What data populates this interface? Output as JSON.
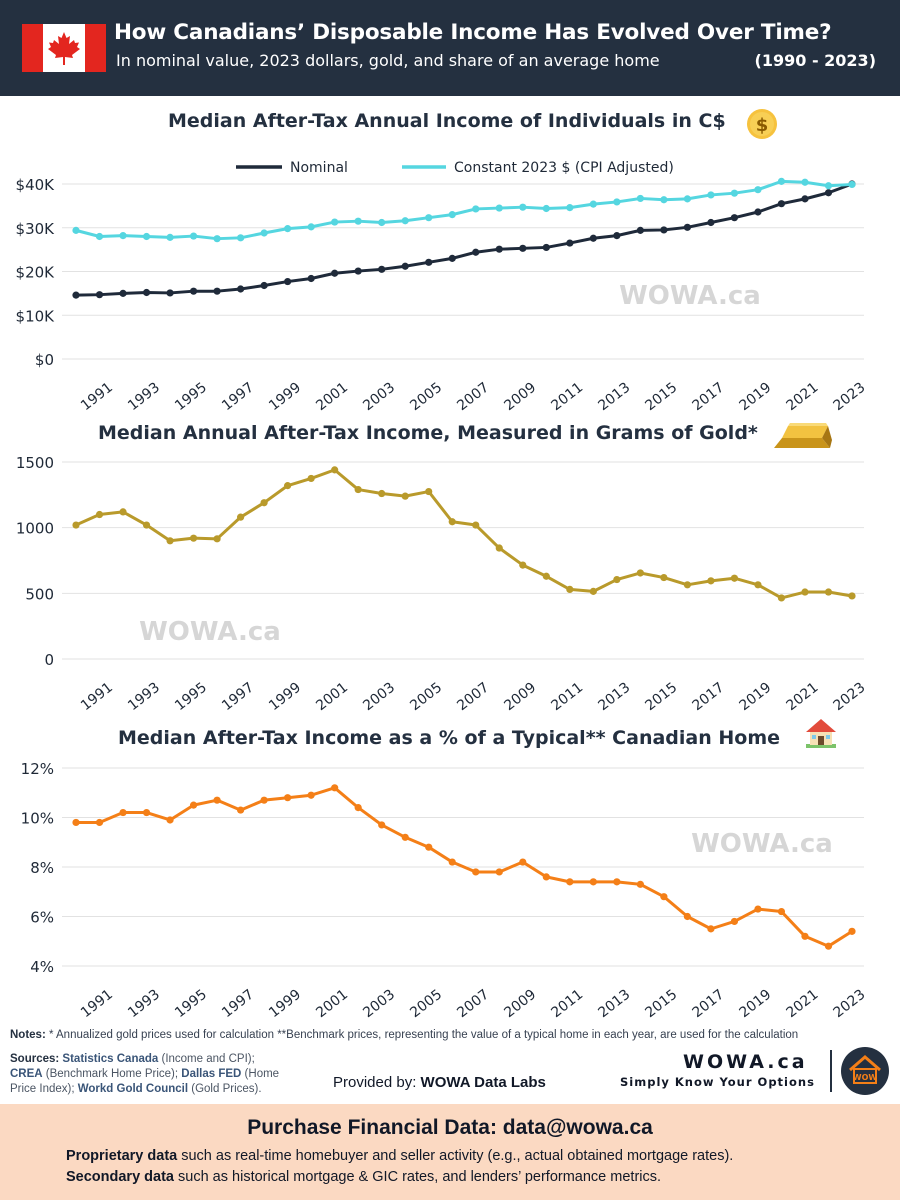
{
  "header": {
    "title": "How Canadians’ Disposable Income Has Evolved Over Time?",
    "subtitle": "In nominal value, 2023 dollars, gold, and share of an average home",
    "range": "(1990 - 2023)"
  },
  "watermark": "WOWA.ca",
  "colors": {
    "header_bg": "#243040",
    "nominal": "#1f2a3a",
    "constant": "#55d6e0",
    "gold": "#b99a2b",
    "home": "#f47f17",
    "footer_bg": "#fbd9c2"
  },
  "chart_data": [
    {
      "type": "line",
      "title": "Median After-Tax Annual Income of Individuals in C$",
      "icon": "dollar-coin-icon",
      "x": [
        1990,
        1991,
        1992,
        1993,
        1994,
        1995,
        1996,
        1997,
        1998,
        1999,
        2000,
        2001,
        2002,
        2003,
        2004,
        2005,
        2006,
        2007,
        2008,
        2009,
        2010,
        2011,
        2012,
        2013,
        2014,
        2015,
        2016,
        2017,
        2018,
        2019,
        2020,
        2021,
        2022,
        2023
      ],
      "x_tick_labels": [
        "1991",
        "1993",
        "1995",
        "1997",
        "1999",
        "2001",
        "2003",
        "2005",
        "2007",
        "2009",
        "2011",
        "2013",
        "2015",
        "2017",
        "2019",
        "2021",
        "2023"
      ],
      "y_tick_labels": [
        "$0",
        "$10K",
        "$20K",
        "$30K",
        "$40K"
      ],
      "ylim": [
        0,
        40000
      ],
      "grid": true,
      "legend_position": "top",
      "series": [
        {
          "name": "Nominal",
          "values": [
            14600,
            14700,
            15000,
            15200,
            15100,
            15500,
            15500,
            16000,
            16800,
            17700,
            18400,
            19600,
            20100,
            20500,
            21200,
            22100,
            23000,
            24400,
            25100,
            25300,
            25500,
            26500,
            27600,
            28200,
            29400,
            29500,
            30100,
            31200,
            32300,
            33600,
            35500,
            36600,
            38000,
            40000
          ]
        },
        {
          "name": "Constant 2023 $ (CPI Adjusted)",
          "values": [
            29400,
            28000,
            28200,
            28000,
            27800,
            28100,
            27500,
            27700,
            28800,
            29800,
            30200,
            31300,
            31500,
            31200,
            31600,
            32300,
            33000,
            34300,
            34500,
            34700,
            34400,
            34600,
            35400,
            35900,
            36700,
            36400,
            36600,
            37500,
            37900,
            38700,
            40600,
            40400,
            39600,
            39900
          ]
        }
      ]
    },
    {
      "type": "line",
      "title": "Median Annual After-Tax Income, Measured in Grams of Gold*",
      "icon": "gold-bar-icon",
      "x": [
        1990,
        1991,
        1992,
        1993,
        1994,
        1995,
        1996,
        1997,
        1998,
        1999,
        2000,
        2001,
        2002,
        2003,
        2004,
        2005,
        2006,
        2007,
        2008,
        2009,
        2010,
        2011,
        2012,
        2013,
        2014,
        2015,
        2016,
        2017,
        2018,
        2019,
        2020,
        2021,
        2022,
        2023
      ],
      "x_tick_labels": [
        "1991",
        "1993",
        "1995",
        "1997",
        "1999",
        "2001",
        "2003",
        "2005",
        "2007",
        "2009",
        "2011",
        "2013",
        "2015",
        "2017",
        "2019",
        "2021",
        "2023"
      ],
      "y_tick_labels": [
        "0",
        "500",
        "1000",
        "1500"
      ],
      "ylim": [
        0,
        1500
      ],
      "grid": true,
      "series": [
        {
          "values": [
            1020,
            1100,
            1120,
            1020,
            900,
            920,
            915,
            1080,
            1190,
            1320,
            1375,
            1440,
            1290,
            1260,
            1240,
            1275,
            1045,
            1020,
            845,
            715,
            630,
            530,
            515,
            605,
            655,
            620,
            565,
            595,
            615,
            565,
            465,
            510,
            510,
            480
          ]
        }
      ]
    },
    {
      "type": "line",
      "title": "Median After-Tax Income as a % of a Typical** Canadian Home",
      "icon": "house-icon",
      "x": [
        1990,
        1991,
        1992,
        1993,
        1994,
        1995,
        1996,
        1997,
        1998,
        1999,
        2000,
        2001,
        2002,
        2003,
        2004,
        2005,
        2006,
        2007,
        2008,
        2009,
        2010,
        2011,
        2012,
        2013,
        2014,
        2015,
        2016,
        2017,
        2018,
        2019,
        2020,
        2021,
        2022,
        2023
      ],
      "x_tick_labels": [
        "1991",
        "1993",
        "1995",
        "1997",
        "1999",
        "2001",
        "2003",
        "2005",
        "2007",
        "2009",
        "2011",
        "2013",
        "2015",
        "2017",
        "2019",
        "2021",
        "2023"
      ],
      "y_tick_labels": [
        "4%",
        "6%",
        "8%",
        "10%",
        "12%"
      ],
      "ylim": [
        4,
        12
      ],
      "grid": true,
      "series": [
        {
          "values": [
            9.8,
            9.8,
            10.2,
            10.2,
            9.9,
            10.5,
            10.7,
            10.3,
            10.7,
            10.8,
            10.9,
            11.2,
            10.4,
            9.7,
            9.2,
            8.8,
            8.2,
            7.8,
            7.8,
            8.2,
            7.6,
            7.4,
            7.4,
            7.4,
            7.3,
            6.8,
            6.0,
            5.5,
            5.8,
            6.3,
            6.2,
            5.2,
            4.8,
            5.4
          ]
        }
      ]
    }
  ],
  "notes": {
    "label": "Notes:",
    "text": " * Annualized gold prices used for calculation  **Benchmark prices, representing the value of a typical home in each year, are used for the calculation"
  },
  "sources": {
    "label": "Sources:",
    "s1": "Statistics Canada",
    "s1_detail": " (Income and CPI);",
    "s2": "CREA",
    "s2_detail": " (Benchmark Home Price); ",
    "s3": "Dallas FED",
    "s3_detail": " (Home Price Index); ",
    "s4": "Workd Gold Council",
    "s4_detail": " (Gold Prices)."
  },
  "provided_by": {
    "label": "Provided by: ",
    "name": "WOWA Data Labs"
  },
  "brand": {
    "name": "WOWA.ca",
    "tagline": "Simply Know Your Options",
    "logo_text": "WOW"
  },
  "footer": {
    "title": "Purchase Financial Data: data@wowa.ca",
    "line1_bold": "Proprietary data",
    "line1_rest": " such as real-time homebuyer and seller activity (e.g., actual obtained mortgage rates).",
    "line2_bold": "Secondary data",
    "line2_rest": " such as historical mortgage & GIC rates, and lenders’ performance metrics."
  }
}
